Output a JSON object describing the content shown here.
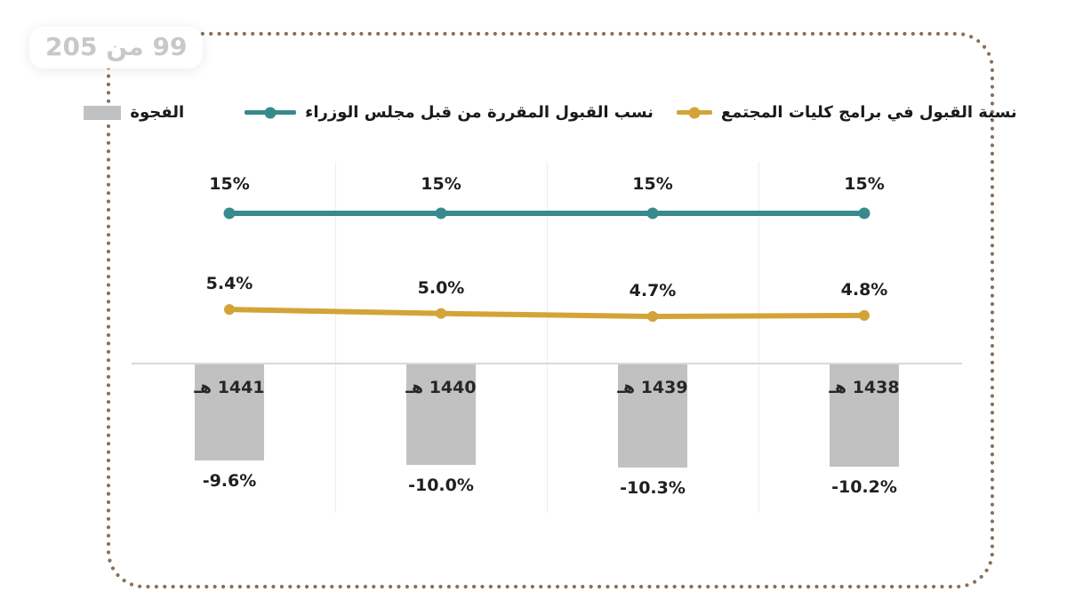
{
  "page": {
    "page_indicator": "99 من 205"
  },
  "frame": {
    "border_color": "#8a6f58"
  },
  "legend": [
    {
      "key": "gap",
      "label": "الفجوة",
      "marker": "box",
      "color": "#c2c1c1"
    },
    {
      "key": "ministers",
      "label": "نسب القبول المقررة من قبل مجلس الوزراء",
      "marker": "line-dot",
      "color": "#388a8d"
    },
    {
      "key": "community",
      "label": "نسبة القبول في برامج كليات المجتمع",
      "marker": "line-dot",
      "color": "#d2a438"
    }
  ],
  "chart_data": {
    "type": "combo",
    "direction": "rtl",
    "title": "",
    "xlabel": "",
    "ylabel": "",
    "categories": [
      "1441 هـ",
      "1440 هـ",
      "1439 هـ",
      "1438 هـ"
    ],
    "series": [
      {
        "key": "ministers",
        "name": "نسب القبول المقررة من قبل مجلس الوزراء",
        "type": "line",
        "color": "#388a8d",
        "values": [
          15,
          15,
          15,
          15
        ],
        "labels": [
          "15%",
          "15%",
          "15%",
          "15%"
        ]
      },
      {
        "key": "community",
        "name": "نسبة القبول في برامج كليات المجتمع",
        "type": "line",
        "color": "#d2a438",
        "values": [
          5.4,
          5.0,
          4.7,
          4.8
        ],
        "labels": [
          "5.4%",
          "5.0%",
          "4.7%",
          "4.8%"
        ]
      },
      {
        "key": "gap",
        "name": "الفجوة",
        "type": "bar",
        "color": "#c2c1c1",
        "values": [
          -9.6,
          -10.0,
          -10.3,
          -10.2
        ],
        "labels": [
          "-9.6%",
          "-10.0%",
          "-10.3%",
          "-10.2%"
        ]
      }
    ],
    "ylim": [
      -12,
      16
    ],
    "grid": "vertical category separators only",
    "legend_position": "top"
  },
  "colors": {
    "axis": "#d9d9d9",
    "gridline": "#ededed",
    "label_text": "#1f1f1f",
    "page_indicator_text": "#c8c8c8"
  }
}
